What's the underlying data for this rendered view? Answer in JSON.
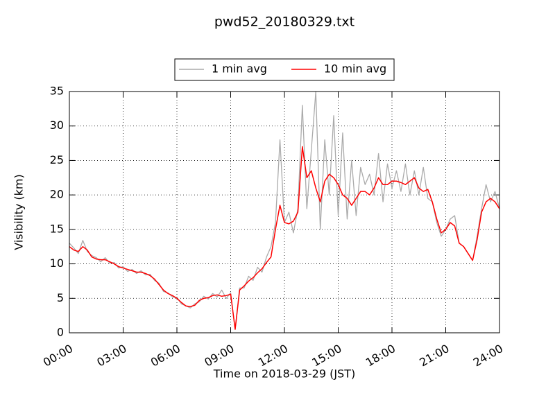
{
  "chart_data": {
    "type": "line",
    "title": "pwd52_20180329.txt",
    "x_label": "Time on 2018-03-29 (JST)",
    "y_label": "Visibility (km)",
    "x": [
      0,
      0.25,
      0.5,
      0.75,
      1,
      1.25,
      1.5,
      1.75,
      2,
      2.25,
      2.5,
      2.75,
      3,
      3.25,
      3.5,
      3.75,
      4,
      4.25,
      4.5,
      4.75,
      5,
      5.25,
      5.5,
      5.75,
      6,
      6.25,
      6.5,
      6.75,
      7,
      7.25,
      7.5,
      7.75,
      8,
      8.25,
      8.5,
      8.75,
      9,
      9.25,
      9.5,
      9.75,
      10,
      10.25,
      10.5,
      10.75,
      11,
      11.25,
      11.5,
      11.75,
      12,
      12.25,
      12.5,
      12.75,
      13,
      13.25,
      13.5,
      13.75,
      14,
      14.25,
      14.5,
      14.75,
      15,
      15.25,
      15.5,
      15.75,
      16,
      16.25,
      16.5,
      16.75,
      17,
      17.25,
      17.5,
      17.75,
      18,
      18.25,
      18.5,
      18.75,
      19,
      19.25,
      19.5,
      19.75,
      20,
      20.25,
      20.5,
      20.75,
      21,
      21.25,
      21.5,
      21.75,
      22,
      22.25,
      22.5,
      22.75,
      23,
      23.25,
      23.5,
      23.75,
      24
    ],
    "series": [
      {
        "name": "1 min avg",
        "color": "#aaaaaa",
        "values": [
          13.0,
          12.3,
          11.5,
          13.4,
          11.8,
          11.2,
          10.9,
          10.3,
          10.9,
          10.1,
          10.2,
          9.4,
          9.6,
          8.9,
          9.2,
          8.6,
          9.0,
          8.4,
          8.5,
          7.6,
          7.2,
          6.0,
          5.8,
          5.2,
          5.1,
          4.2,
          3.9,
          3.6,
          4.2,
          4.5,
          5.3,
          4.9,
          5.7,
          5.2,
          6.2,
          5.0,
          5.8,
          0.5,
          6.5,
          6.5,
          8.2,
          7.6,
          9.5,
          8.8,
          11.0,
          12.5,
          16.0,
          28.0,
          16.0,
          17.5,
          14.5,
          18.0,
          33.0,
          18.0,
          26.5,
          35.0,
          15.0,
          28.0,
          20.0,
          31.5,
          17.0,
          29.0,
          16.5,
          25.0,
          17.0,
          24.0,
          21.5,
          23.0,
          20.0,
          26.0,
          19.0,
          24.5,
          21.0,
          23.5,
          20.5,
          24.5,
          20.0,
          23.5,
          20.0,
          24.0,
          19.5,
          19.0,
          16.0,
          14.0,
          15.0,
          16.5,
          17.0,
          13.0,
          12.5,
          11.5,
          10.5,
          14.0,
          18.0,
          21.5,
          19.0,
          20.5,
          18.0
        ]
      },
      {
        "name": "10 min avg",
        "color": "#ff0000",
        "values": [
          12.5,
          12.0,
          11.8,
          12.5,
          12.0,
          11.0,
          10.7,
          10.6,
          10.6,
          10.3,
          10.0,
          9.6,
          9.4,
          9.2,
          9.0,
          8.8,
          8.8,
          8.6,
          8.3,
          7.8,
          7.0,
          6.2,
          5.7,
          5.4,
          5.0,
          4.4,
          3.9,
          3.8,
          4.0,
          4.7,
          5.0,
          5.1,
          5.4,
          5.5,
          5.3,
          5.4,
          5.6,
          0.5,
          6.2,
          6.8,
          7.5,
          8.0,
          8.7,
          9.3,
          10.2,
          11.0,
          15.0,
          18.5,
          16.0,
          15.8,
          16.2,
          17.5,
          27.0,
          22.5,
          23.5,
          21.0,
          19.0,
          22.0,
          23.0,
          22.5,
          21.5,
          20.0,
          19.5,
          18.5,
          19.5,
          20.5,
          20.5,
          20.0,
          21.0,
          22.5,
          21.5,
          21.5,
          22.0,
          22.0,
          21.8,
          21.5,
          22.0,
          22.5,
          21.0,
          20.5,
          20.8,
          19.0,
          16.5,
          14.5,
          15.0,
          16.0,
          15.5,
          13.0,
          12.5,
          11.5,
          10.5,
          13.5,
          17.5,
          19.0,
          19.5,
          19.0,
          18.0
        ]
      }
    ],
    "xlim": [
      0,
      24
    ],
    "xticks": [
      {
        "value": 0,
        "label": "00:00"
      },
      {
        "value": 3,
        "label": "03:00"
      },
      {
        "value": 6,
        "label": "06:00"
      },
      {
        "value": 9,
        "label": "09:00"
      },
      {
        "value": 12,
        "label": "12:00"
      },
      {
        "value": 15,
        "label": "15:00"
      },
      {
        "value": 18,
        "label": "18:00"
      },
      {
        "value": 21,
        "label": "21:00"
      },
      {
        "value": 24,
        "label": "24:00"
      }
    ],
    "ylim": [
      0,
      35
    ],
    "yticks": [
      0,
      5,
      10,
      15,
      20,
      25,
      30,
      35
    ],
    "grid": true,
    "legend": "top"
  }
}
